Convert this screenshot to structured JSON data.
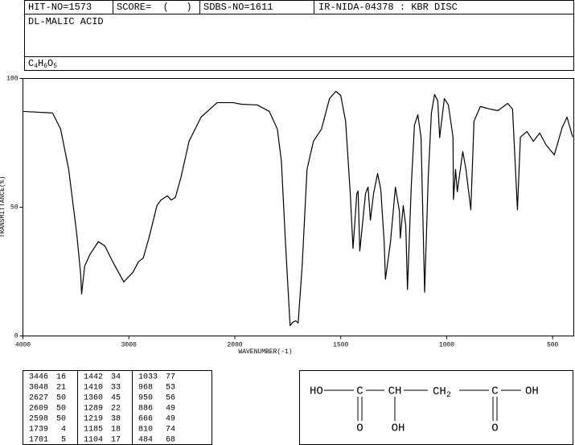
{
  "header": {
    "hit_no": "HIT-NO=1573",
    "score": "SCORE=  (   )",
    "sdbs_no": "SDBS-NO=1611",
    "method": "IR-NIDA-04378 : KBR DISC",
    "name": "DL-MALIC ACID",
    "formula": [
      "C",
      "4",
      "H",
      "6",
      "O",
      "5"
    ]
  },
  "chart_data": {
    "type": "line",
    "xlabel": "WAVENUMBER(-1)",
    "ylabel": "TRANSMITTANCE(%)",
    "color": "#000000",
    "xlim": [
      4000,
      400
    ],
    "xticks": [
      4000,
      3000,
      2000,
      1500,
      1000,
      500
    ],
    "ylim": [
      0,
      100
    ],
    "yticks": [
      0,
      50,
      100
    ],
    "x": [
      4000,
      3720,
      3644,
      3568,
      3492,
      3455,
      3446,
      3417,
      3364,
      3288,
      3227,
      3152,
      3076,
      3048,
      2962,
      2909,
      2864,
      2810,
      2735,
      2697,
      2636,
      2600,
      2561,
      2508,
      2432,
      2318,
      2167,
      2015,
      1970,
      1894,
      1837,
      1799,
      1780,
      1761,
      1739,
      1727,
      1712,
      1701,
      1682,
      1659,
      1629,
      1591,
      1553,
      1523,
      1500,
      1477,
      1455,
      1442,
      1424,
      1418,
      1410,
      1383,
      1371,
      1360,
      1345,
      1326,
      1311,
      1295,
      1289,
      1265,
      1242,
      1223,
      1219,
      1205,
      1193,
      1185,
      1167,
      1152,
      1136,
      1121,
      1104,
      1087,
      1072,
      1057,
      1042,
      1033,
      1011,
      992,
      970,
      968,
      958,
      950,
      924,
      909,
      886,
      871,
      841,
      795,
      758,
      712,
      689,
      666,
      652,
      621,
      591,
      561,
      530,
      492,
      455,
      432,
      405
    ],
    "values": [
      87.2,
      86.6,
      80.3,
      64.7,
      39.7,
      24.1,
      16.3,
      27.2,
      31.9,
      36.6,
      35,
      28.8,
      23.1,
      21,
      24.7,
      28.8,
      30.3,
      38.1,
      50.6,
      52.8,
      54.4,
      52.8,
      53.8,
      61.6,
      75.6,
      85,
      90.6,
      90.6,
      90,
      89.7,
      87.2,
      80.3,
      67.8,
      36.6,
      4,
      5.3,
      5.9,
      5,
      27.2,
      64.7,
      75.6,
      80.3,
      92.2,
      95,
      93.4,
      83.4,
      55.3,
      34,
      55.3,
      56.3,
      33,
      55.3,
      57.8,
      45,
      55.3,
      63.1,
      56.9,
      36.6,
      22,
      36.6,
      57.8,
      48.4,
      38,
      50.6,
      42.8,
      18,
      58.4,
      81.9,
      85.9,
      77.2,
      17,
      61.6,
      86.6,
      93.8,
      91.3,
      77,
      92.2,
      89.7,
      77.2,
      53,
      64.7,
      56,
      71.6,
      64.7,
      49,
      83.4,
      89.1,
      88.1,
      87.5,
      90.3,
      88.1,
      49,
      77.2,
      79.4,
      75.6,
      78.8,
      74.1,
      70.3,
      80.9,
      85,
      77.2
    ]
  },
  "peak_table": [
    [
      [
        3446,
        16
      ],
      [
        3048,
        21
      ],
      [
        2627,
        50
      ],
      [
        2609,
        50
      ],
      [
        2598,
        50
      ],
      [
        1739,
        4
      ],
      [
        1701,
        5
      ]
    ],
    [
      [
        1442,
        34
      ],
      [
        1410,
        33
      ],
      [
        1360,
        45
      ],
      [
        1289,
        22
      ],
      [
        1219,
        38
      ],
      [
        1185,
        18
      ],
      [
        1104,
        17
      ]
    ],
    [
      [
        1033,
        77
      ],
      [
        968,
        53
      ],
      [
        950,
        56
      ],
      [
        886,
        49
      ],
      [
        666,
        49
      ],
      [
        810,
        74
      ],
      [
        484,
        68
      ]
    ]
  ],
  "structure": {
    "chain": [
      "HO",
      "C",
      "CH",
      "CH",
      "2",
      "C",
      "OH"
    ],
    "below": [
      "O",
      "OH",
      "O"
    ]
  }
}
